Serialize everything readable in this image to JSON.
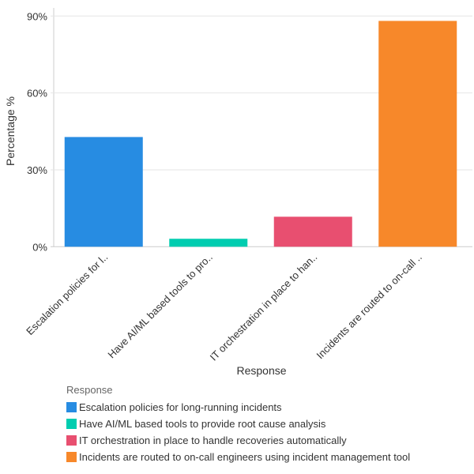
{
  "chart_data": {
    "type": "bar",
    "xlabel": "Response",
    "ylabel": "Percentage %",
    "ylim": [
      0,
      90
    ],
    "yticks": [
      "0%",
      "30%",
      "60%",
      "90%"
    ],
    "ytick_values": [
      0,
      30,
      60,
      90
    ],
    "grid": true,
    "categories": [
      "Escalation policies for l..",
      "Have AI/ML based tools to pro..",
      "IT orchestration in place to han..",
      "Incidents are routed to on-call .."
    ],
    "values": [
      42.8,
      3.1,
      11.7,
      88.1
    ],
    "colors": [
      "#278ce2",
      "#00cdb0",
      "#e84f70",
      "#f7882a"
    ],
    "legend": {
      "title": "Response",
      "placement": "bottom-left",
      "entries": [
        "Escalation policies for long-running incidents",
        "Have AI/ML based tools to provide root cause analysis",
        "IT orchestration in place to handle recoveries automatically",
        "Incidents are routed to on-call engineers using incident management tool"
      ]
    }
  }
}
